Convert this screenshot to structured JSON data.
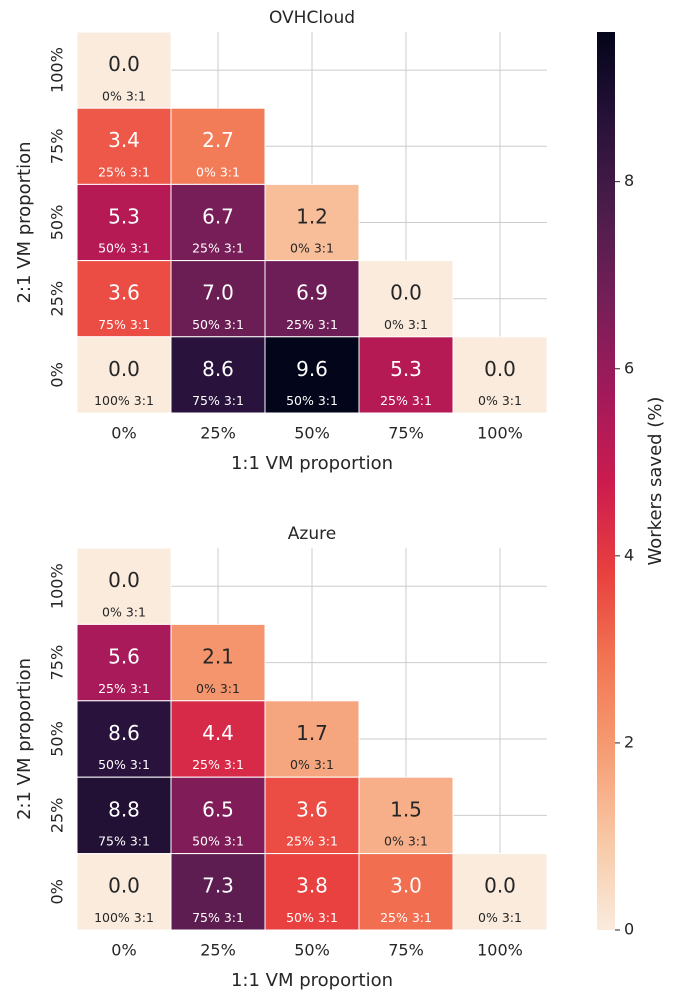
{
  "chart_data": [
    {
      "type": "heatmap",
      "title": "OVHCloud",
      "x_label": "1:1 VM proportion",
      "y_label": "2:1 VM proportion",
      "x_categories": [
        "0%",
        "25%",
        "50%",
        "75%",
        "100%"
      ],
      "y_categories": [
        "100%",
        "75%",
        "50%",
        "25%",
        "0%"
      ],
      "values": [
        [
          0.0,
          null,
          null,
          null,
          null
        ],
        [
          3.4,
          2.7,
          null,
          null,
          null
        ],
        [
          5.3,
          6.7,
          1.2,
          null,
          null
        ],
        [
          3.6,
          7.0,
          6.9,
          0.0,
          null
        ],
        [
          0.0,
          8.6,
          9.6,
          5.3,
          0.0
        ]
      ],
      "value_labels": [
        [
          "0.0",
          null,
          null,
          null,
          null
        ],
        [
          "3.4",
          "2.7",
          null,
          null,
          null
        ],
        [
          "5.3",
          "6.7",
          "1.2",
          null,
          null
        ],
        [
          "3.6",
          "7.0",
          "6.9",
          "0.0",
          null
        ],
        [
          "0.0",
          "8.6",
          "9.6",
          "5.3",
          "0.0"
        ]
      ],
      "cell_notes": [
        [
          "0% 3:1",
          null,
          null,
          null,
          null
        ],
        [
          "25% 3:1",
          "0% 3:1",
          null,
          null,
          null
        ],
        [
          "50% 3:1",
          "25% 3:1",
          "0% 3:1",
          null,
          null
        ],
        [
          "75% 3:1",
          "50% 3:1",
          "25% 3:1",
          "0% 3:1",
          null
        ],
        [
          "100% 3:1",
          "75% 3:1",
          "50% 3:1",
          "25% 3:1",
          "0% 3:1"
        ]
      ],
      "grid": true
    },
    {
      "type": "heatmap",
      "title": "Azure",
      "x_label": "1:1 VM proportion",
      "y_label": "2:1 VM proportion",
      "x_categories": [
        "0%",
        "25%",
        "50%",
        "75%",
        "100%"
      ],
      "y_categories": [
        "100%",
        "75%",
        "50%",
        "25%",
        "0%"
      ],
      "values": [
        [
          0.0,
          null,
          null,
          null,
          null
        ],
        [
          5.6,
          2.1,
          null,
          null,
          null
        ],
        [
          8.6,
          4.4,
          1.7,
          null,
          null
        ],
        [
          8.8,
          6.5,
          3.6,
          1.5,
          null
        ],
        [
          0.0,
          7.3,
          3.8,
          3.0,
          0.0
        ]
      ],
      "value_labels": [
        [
          "0.0",
          null,
          null,
          null,
          null
        ],
        [
          "5.6",
          "2.1",
          null,
          null,
          null
        ],
        [
          "8.6",
          "4.4",
          "1.7",
          null,
          null
        ],
        [
          "8.8",
          "6.5",
          "3.6",
          "1.5",
          null
        ],
        [
          "0.0",
          "7.3",
          "3.8",
          "3.0",
          "0.0"
        ]
      ],
      "cell_notes": [
        [
          "0% 3:1",
          null,
          null,
          null,
          null
        ],
        [
          "25% 3:1",
          "0% 3:1",
          null,
          null,
          null
        ],
        [
          "50% 3:1",
          "25% 3:1",
          "0% 3:1",
          null,
          null
        ],
        [
          "75% 3:1",
          "50% 3:1",
          "25% 3:1",
          "0% 3:1",
          null
        ],
        [
          "100% 3:1",
          "75% 3:1",
          "50% 3:1",
          "25% 3:1",
          "0% 3:1"
        ]
      ],
      "grid": true
    },
    {
      "type": "colorbar",
      "label": "Workers saved (%)",
      "cmap": "rocket_r",
      "lim": [
        0,
        9.6
      ],
      "ticks": [
        0,
        2,
        4,
        6,
        8
      ]
    }
  ]
}
